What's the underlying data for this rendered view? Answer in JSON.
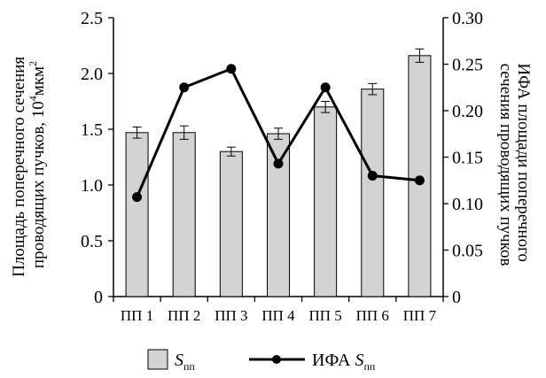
{
  "chart_data": {
    "type": "bar",
    "categories": [
      "ПП 1",
      "ПП 2",
      "ПП 3",
      "ПП 4",
      "ПП 5",
      "ПП 6",
      "ПП 7"
    ],
    "series": [
      {
        "name": "S",
        "name_sub": "пп",
        "type": "bar",
        "axis": "left",
        "values": [
          1.47,
          1.47,
          1.3,
          1.46,
          1.7,
          1.86,
          2.16
        ],
        "errors": [
          0.05,
          0.06,
          0.04,
          0.05,
          0.05,
          0.05,
          0.06
        ],
        "color": "#d3d3d3"
      },
      {
        "name": "ИФА S",
        "name_sub": "пп",
        "type": "line",
        "axis": "right",
        "values": [
          0.107,
          0.225,
          0.245,
          0.143,
          0.225,
          0.13,
          0.125
        ],
        "color": "#000000"
      }
    ],
    "y_left": {
      "label": "Площадь поперечного сечения проводящих пучков, 10⁴мкм²",
      "label_lines": [
        "Площадь поперечного сечения",
        "проводящих пучков, 10"
      ],
      "label_sup": "4",
      "label_unit": "мкм",
      "label_unit_sup": "2",
      "ylim": [
        0,
        2.5
      ],
      "ticks": [
        "0",
        "0.5",
        "1.0",
        "1.5",
        "2.0",
        "2.5"
      ]
    },
    "y_right": {
      "label_lines": [
        "ИФА площади поперечного",
        "сечения проводящих пучков"
      ],
      "ylim": [
        0,
        0.3
      ],
      "ticks": [
        "0",
        "0.05",
        "0.10",
        "0.15",
        "0.20",
        "0.25",
        "0.30"
      ]
    },
    "legend_position": "bottom-center",
    "grid": false
  }
}
